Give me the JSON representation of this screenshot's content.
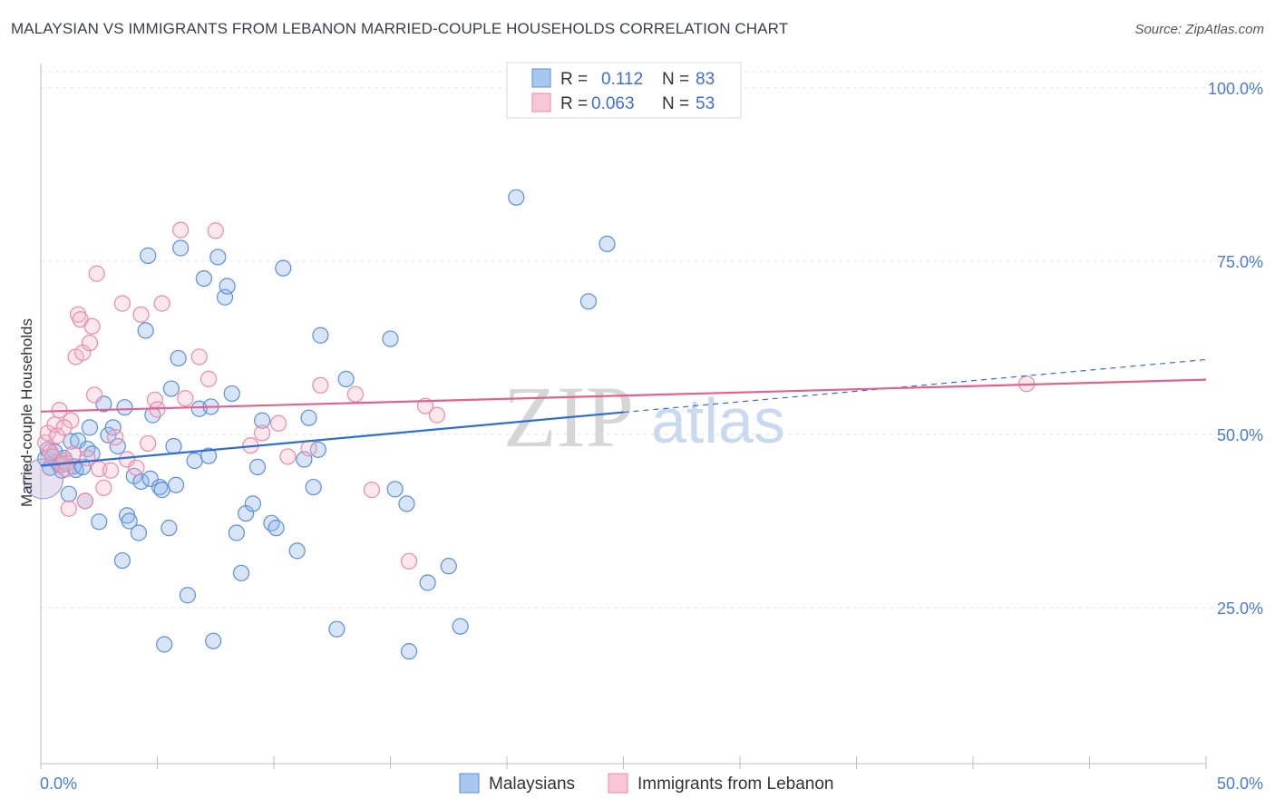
{
  "title": "MALAYSIAN VS IMMIGRANTS FROM LEBANON MARRIED-COUPLE HOUSEHOLDS CORRELATION CHART",
  "source": "Source: ZipAtlas.com",
  "watermark": {
    "zip": "ZIP",
    "atlas": "atlas"
  },
  "legend": {
    "rows": [
      {
        "r_label": "R =",
        "r_value": "0.112",
        "n_label": "N =",
        "n_value": "83",
        "color": "#8fb4ea",
        "stroke": "#5b8fd9"
      },
      {
        "r_label": "R =",
        "r_value": "0.063",
        "n_label": "N =",
        "n_value": "53",
        "color": "#f6b9cb",
        "stroke": "#e98aa8"
      }
    ]
  },
  "chart_data": {
    "type": "scatter",
    "title": "MALAYSIAN VS IMMIGRANTS FROM LEBANON MARRIED-COUPLE HOUSEHOLDS CORRELATION CHART",
    "xlabel": "",
    "ylabel": "Married-couple Households",
    "xlim": [
      0,
      50
    ],
    "ylim": [
      0,
      105
    ],
    "x_tick_labels": [
      "0.0%",
      "50.0%"
    ],
    "y_ticks": [
      25,
      50,
      75,
      100
    ],
    "y_tick_labels": [
      "25.0%",
      "50.0%",
      "75.0%",
      "100.0%"
    ],
    "grid": true,
    "legend_position": "top-center",
    "series": [
      {
        "name": "Malaysians",
        "color": "#8fb4ea",
        "stroke": "#5b8fd9",
        "trend": {
          "x": [
            0,
            25
          ],
          "y": [
            45.5,
            53.2
          ],
          "dashed_to": [
            50,
            60.8
          ],
          "color": "#2f6fcf"
        },
        "points": [
          [
            0.2,
            46.5
          ],
          [
            0.3,
            47.8
          ],
          [
            0.4,
            45.2
          ],
          [
            0.5,
            46.8
          ],
          [
            0.6,
            47.5
          ],
          [
            0.7,
            46.0
          ],
          [
            0.8,
            45.6
          ],
          [
            0.9,
            44.8
          ],
          [
            1.0,
            46.6
          ],
          [
            1.1,
            45.8
          ],
          [
            1.2,
            41.4
          ],
          [
            1.3,
            49.0
          ],
          [
            1.4,
            45.4
          ],
          [
            1.5,
            44.9
          ],
          [
            1.6,
            49.1
          ],
          [
            1.8,
            45.3
          ],
          [
            1.9,
            40.4
          ],
          [
            2.0,
            47.9
          ],
          [
            2.1,
            51.0
          ],
          [
            2.2,
            47.2
          ],
          [
            2.5,
            37.4
          ],
          [
            2.7,
            54.4
          ],
          [
            2.9,
            49.9
          ],
          [
            3.1,
            51.0
          ],
          [
            3.3,
            48.3
          ],
          [
            3.5,
            31.8
          ],
          [
            3.6,
            53.9
          ],
          [
            3.7,
            38.3
          ],
          [
            3.8,
            37.5
          ],
          [
            4.0,
            44.0
          ],
          [
            4.2,
            35.8
          ],
          [
            4.3,
            43.2
          ],
          [
            4.5,
            65.0
          ],
          [
            4.6,
            75.8
          ],
          [
            4.7,
            43.6
          ],
          [
            4.8,
            52.8
          ],
          [
            5.1,
            42.4
          ],
          [
            5.2,
            42.0
          ],
          [
            5.3,
            19.7
          ],
          [
            5.5,
            36.5
          ],
          [
            5.6,
            56.6
          ],
          [
            5.7,
            48.3
          ],
          [
            5.8,
            42.7
          ],
          [
            5.9,
            61.0
          ],
          [
            6.0,
            76.9
          ],
          [
            6.3,
            26.8
          ],
          [
            6.6,
            46.2
          ],
          [
            6.8,
            53.7
          ],
          [
            7.0,
            72.5
          ],
          [
            7.2,
            46.9
          ],
          [
            7.3,
            54.0
          ],
          [
            7.4,
            20.2
          ],
          [
            7.6,
            75.6
          ],
          [
            7.9,
            69.8
          ],
          [
            8.0,
            71.4
          ],
          [
            8.2,
            55.9
          ],
          [
            8.4,
            35.8
          ],
          [
            8.6,
            30.0
          ],
          [
            8.8,
            38.6
          ],
          [
            9.1,
            40.0
          ],
          [
            9.3,
            45.3
          ],
          [
            9.5,
            52.0
          ],
          [
            9.9,
            37.2
          ],
          [
            10.1,
            36.5
          ],
          [
            10.4,
            74.0
          ],
          [
            11.0,
            33.2
          ],
          [
            11.3,
            46.4
          ],
          [
            11.5,
            52.4
          ],
          [
            11.7,
            42.4
          ],
          [
            11.9,
            47.8
          ],
          [
            12.0,
            64.3
          ],
          [
            12.7,
            21.9
          ],
          [
            13.1,
            58.0
          ],
          [
            15.0,
            63.8
          ],
          [
            15.2,
            42.1
          ],
          [
            15.7,
            40.0
          ],
          [
            15.8,
            18.7
          ],
          [
            16.6,
            28.6
          ],
          [
            17.5,
            31.0
          ],
          [
            18.0,
            22.3
          ],
          [
            20.4,
            84.2
          ],
          [
            23.5,
            69.2
          ],
          [
            24.3,
            77.5
          ]
        ]
      },
      {
        "name": "Immigrants from Lebanon",
        "color": "#f6b9cb",
        "stroke": "#e98aa8",
        "trend": {
          "x": [
            0,
            50
          ],
          "y": [
            53.3,
            57.9
          ],
          "color": "#e0628f"
        },
        "points": [
          [
            0.2,
            48.8
          ],
          [
            0.3,
            50.2
          ],
          [
            0.4,
            47.5
          ],
          [
            0.5,
            46.8
          ],
          [
            0.6,
            51.4
          ],
          [
            0.7,
            49.8
          ],
          [
            0.8,
            53.5
          ],
          [
            0.9,
            45.6
          ],
          [
            1.0,
            46.2
          ],
          [
            1.1,
            45.0
          ],
          [
            1.2,
            39.3
          ],
          [
            1.3,
            52.0
          ],
          [
            1.4,
            47.2
          ],
          [
            1.5,
            61.2
          ],
          [
            1.6,
            67.3
          ],
          [
            1.7,
            66.6
          ],
          [
            1.8,
            61.8
          ],
          [
            1.9,
            40.4
          ],
          [
            2.0,
            46.6
          ],
          [
            2.1,
            63.2
          ],
          [
            2.2,
            65.6
          ],
          [
            2.3,
            55.7
          ],
          [
            2.4,
            73.2
          ],
          [
            2.5,
            45.0
          ],
          [
            2.7,
            42.3
          ],
          [
            3.0,
            44.8
          ],
          [
            3.2,
            49.6
          ],
          [
            3.5,
            68.9
          ],
          [
            3.7,
            46.4
          ],
          [
            4.1,
            45.2
          ],
          [
            4.3,
            67.3
          ],
          [
            4.6,
            48.7
          ],
          [
            4.9,
            55.0
          ],
          [
            5.0,
            53.6
          ],
          [
            5.2,
            68.9
          ],
          [
            6.0,
            79.5
          ],
          [
            6.2,
            55.2
          ],
          [
            6.8,
            61.2
          ],
          [
            7.2,
            58.0
          ],
          [
            7.5,
            79.4
          ],
          [
            9.0,
            48.4
          ],
          [
            9.5,
            50.2
          ],
          [
            10.2,
            51.6
          ],
          [
            10.6,
            46.8
          ],
          [
            11.5,
            48.0
          ],
          [
            12.0,
            57.1
          ],
          [
            13.5,
            55.8
          ],
          [
            14.2,
            42.0
          ],
          [
            15.8,
            31.7
          ],
          [
            16.5,
            54.1
          ],
          [
            17.0,
            52.8
          ],
          [
            1.0,
            51.0
          ],
          [
            42.3,
            57.3
          ]
        ]
      }
    ]
  },
  "bottom_legend": [
    {
      "label": "Malaysians",
      "color": "#a9c6ef",
      "stroke": "#5b8fd9"
    },
    {
      "label": "Immigrants from Lebanon",
      "color": "#f8c6d6",
      "stroke": "#e98aa8"
    }
  ]
}
